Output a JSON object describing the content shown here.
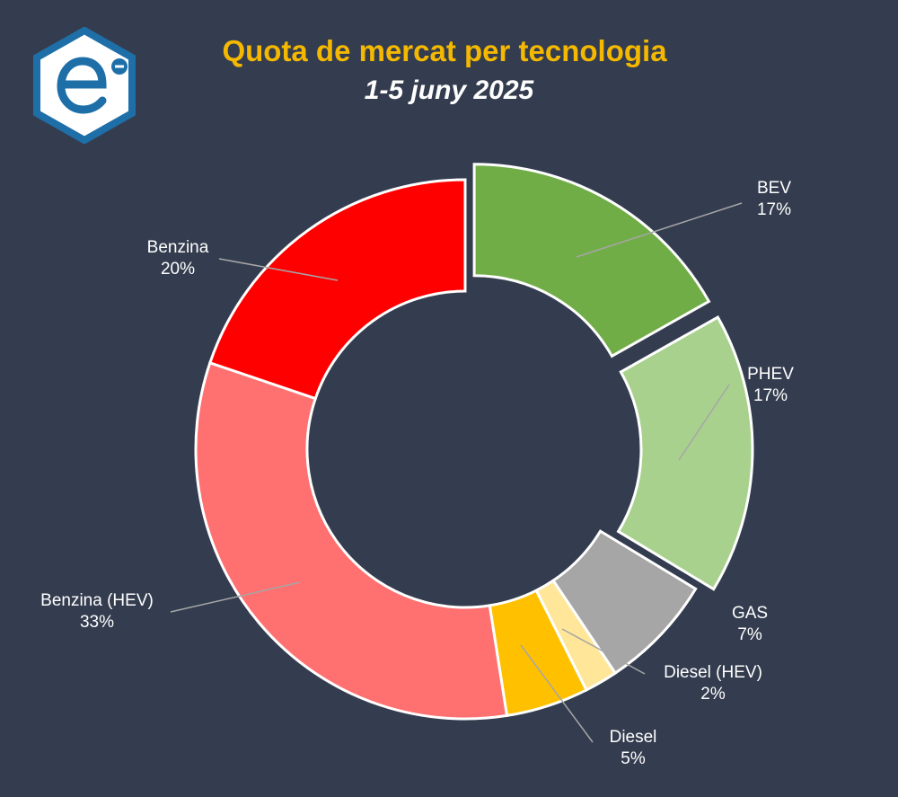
{
  "chart_data": {
    "type": "pie",
    "variant": "donut",
    "title": "Quota de mercat per tecnologia",
    "subtitle": "1-5 juny 2025",
    "unit": "%",
    "slices": [
      {
        "name": "BEV",
        "value": 17,
        "label": "17%",
        "color": "#70ad47",
        "exploded": true
      },
      {
        "name": "PHEV",
        "value": 17,
        "label": "17%",
        "color": "#a9d18e",
        "exploded": true
      },
      {
        "name": "GAS",
        "value": 7,
        "label": "7%",
        "color": "#a6a6a6",
        "exploded": false
      },
      {
        "name": "Diesel (HEV)",
        "value": 2,
        "label": "2%",
        "color": "#ffe699",
        "exploded": false
      },
      {
        "name": "Diesel",
        "value": 5,
        "label": "5%",
        "color": "#ffc000",
        "exploded": false
      },
      {
        "name": "Benzina (HEV)",
        "value": 33,
        "label": "33%",
        "color": "#ff7070",
        "exploded": false
      },
      {
        "name": "Benzina",
        "value": 20,
        "label": "20%",
        "color": "#ff0000",
        "exploded": false
      }
    ],
    "legend": "none",
    "data_labels": "outside with leader lines"
  },
  "logo": {
    "icon": "e-hexagon-logo-icon",
    "color": "#1e6fa8"
  }
}
